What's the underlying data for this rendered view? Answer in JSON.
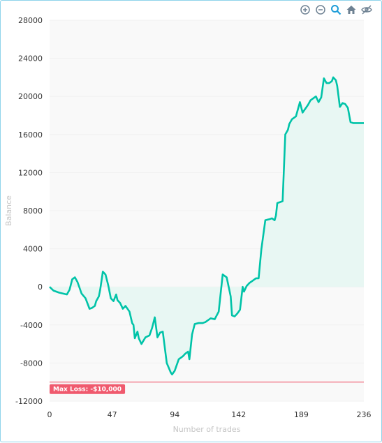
{
  "toolbar": {
    "icons": [
      "zoom-in-icon",
      "zoom-out-icon",
      "zoom-select-icon",
      "home-reset-icon",
      "hide-eye-icon"
    ],
    "accent": "#1e9dd8",
    "muted": "#6e8192"
  },
  "colors": {
    "line": "#00c3a8",
    "area": "#e8f7f3",
    "maxloss": "#f05a6e",
    "grid": "#f1f1f1",
    "plotbg": "#f9f9f9"
  },
  "chart_data": {
    "type": "area",
    "title": "",
    "xlabel": "Number of trades",
    "ylabel": "Balance",
    "xlim": [
      0,
      236
    ],
    "ylim": [
      -12000,
      28000
    ],
    "x_ticks": [
      0,
      47,
      94,
      142,
      189,
      236
    ],
    "x_tick_labels": [
      "0",
      "47",
      "94",
      "142",
      "189",
      "236"
    ],
    "y_ticks": [
      28000,
      24000,
      20000,
      16000,
      12000,
      8000,
      4000,
      0,
      -4000,
      -8000,
      -12000
    ],
    "y_tick_labels": [
      "28000",
      "24000",
      "20000",
      "16000",
      "12000",
      "8000",
      "4000",
      "0",
      "-4000",
      "-8000",
      "-12000"
    ],
    "grid": true,
    "series": [
      {
        "x": [
          0,
          3,
          7,
          10,
          13,
          15,
          17,
          19,
          21,
          24,
          27,
          30,
          32,
          34,
          35,
          37,
          38,
          40,
          42,
          44,
          46,
          48,
          50,
          51,
          53,
          55,
          57,
          60,
          62,
          63,
          64,
          66,
          67,
          69,
          72,
          75,
          77,
          79,
          81,
          83,
          85,
          88,
          91,
          92,
          94,
          97,
          100,
          102,
          104,
          105,
          107,
          109,
          112,
          115,
          117,
          121,
          124,
          127,
          130,
          133,
          136,
          137,
          139,
          141,
          143,
          145,
          146,
          148,
          150,
          152,
          153,
          155,
          157,
          159,
          162,
          165,
          167,
          169,
          170,
          171,
          173,
          175,
          177,
          179,
          180,
          182,
          185,
          188,
          190,
          193,
          194,
          196,
          198,
          200,
          202,
          204,
          206,
          208,
          210,
          212,
          213,
          215,
          216,
          218,
          220,
          222,
          224,
          226,
          228,
          230,
          232,
          234,
          235,
          236
        ],
        "values": [
          0,
          -400,
          -600,
          -700,
          -800,
          -300,
          800,
          1000,
          500,
          -700,
          -1200,
          -2300,
          -2200,
          -2000,
          -1500,
          -1000,
          -300,
          1600,
          1300,
          200,
          -1200,
          -1500,
          -800,
          -1400,
          -1700,
          -2300,
          -2000,
          -2600,
          -3800,
          -4000,
          -5400,
          -4700,
          -5400,
          -6000,
          -5300,
          -5100,
          -4300,
          -3200,
          -5300,
          -4800,
          -4700,
          -8000,
          -9000,
          -9200,
          -8800,
          -7600,
          -7300,
          -7000,
          -6800,
          -7600,
          -5000,
          -3900,
          -3800,
          -3800,
          -3700,
          -3300,
          -3400,
          -2600,
          1300,
          1000,
          -1000,
          -3000,
          -3100,
          -2800,
          -2400,
          0,
          -500,
          100,
          400,
          600,
          700,
          900,
          900,
          3900,
          7000,
          7100,
          7200,
          7000,
          7500,
          8800,
          8900,
          9000,
          16000,
          16500,
          17100,
          17600,
          17900,
          19400,
          18300,
          18900,
          19100,
          19600,
          19800,
          20000,
          19400,
          19900,
          21900,
          21400,
          21400,
          21600,
          22000,
          21700,
          21100,
          18900,
          19300,
          19200,
          18800,
          17300,
          17200,
          17200,
          17200,
          17200,
          17200,
          17200
        ]
      }
    ],
    "annotations": [
      {
        "type": "horizontal-line",
        "y": -10000,
        "label": "Max Loss: -$10,000"
      }
    ]
  }
}
